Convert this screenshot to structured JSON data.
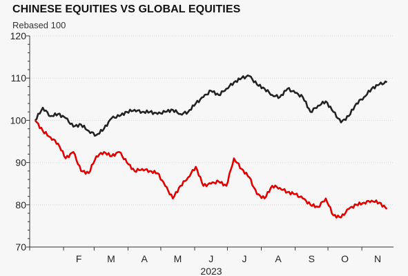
{
  "chart_data": {
    "type": "line",
    "title": "CHINESE EQUITIES VS GLOBAL EQUITIES",
    "subtitle": "Rebased 100",
    "xlabel": "2023",
    "ylabel": "",
    "ylim": [
      70,
      120
    ],
    "yticks": [
      "70",
      "80",
      "90",
      "100",
      "110",
      "120"
    ],
    "xticks": [
      "F",
      "M",
      "A",
      "M",
      "J",
      "J",
      "A",
      "S",
      "O",
      "N"
    ],
    "grid": true,
    "legend": "none",
    "x": [
      "2023-01-06",
      "2023-01-13",
      "2023-01-20",
      "2023-01-27",
      "2023-02-03",
      "2023-02-10",
      "2023-02-17",
      "2023-02-24",
      "2023-03-03",
      "2023-03-10",
      "2023-03-17",
      "2023-03-24",
      "2023-03-31",
      "2023-04-07",
      "2023-04-14",
      "2023-04-21",
      "2023-04-28",
      "2023-05-05",
      "2023-05-12",
      "2023-05-19",
      "2023-05-26",
      "2023-06-02",
      "2023-06-09",
      "2023-06-16",
      "2023-06-23",
      "2023-06-30",
      "2023-07-07",
      "2023-07-14",
      "2023-07-21",
      "2023-07-28",
      "2023-08-04",
      "2023-08-11",
      "2023-08-18",
      "2023-08-25",
      "2023-09-01",
      "2023-09-08",
      "2023-09-15",
      "2023-09-22",
      "2023-09-29",
      "2023-10-06",
      "2023-10-13",
      "2023-10-20",
      "2023-10-27",
      "2023-11-03",
      "2023-11-10",
      "2023-11-17",
      "2023-11-24"
    ],
    "series": [
      {
        "color": "#222222",
        "values": [
          100.0,
          103.0,
          101.0,
          101.5,
          100.5,
          98.5,
          99.0,
          97.5,
          96.5,
          98.0,
          100.5,
          101.0,
          102.0,
          102.5,
          102.0,
          102.0,
          101.5,
          102.0,
          102.5,
          101.5,
          102.0,
          104.0,
          105.5,
          107.0,
          106.0,
          107.5,
          109.0,
          110.0,
          110.5,
          108.5,
          107.5,
          106.0,
          105.5,
          107.5,
          106.5,
          105.5,
          102.0,
          103.5,
          104.5,
          102.0,
          99.5,
          101.0,
          104.0,
          105.5,
          107.5,
          108.5,
          109.0
        ]
      },
      {
        "color": "#e00000",
        "values": [
          100.0,
          97.5,
          96.0,
          94.5,
          91.0,
          92.5,
          88.0,
          87.5,
          91.5,
          92.5,
          91.5,
          92.5,
          90.0,
          88.0,
          88.5,
          88.0,
          87.5,
          84.5,
          81.5,
          84.5,
          86.5,
          89.0,
          84.5,
          85.0,
          85.5,
          84.5,
          91.0,
          88.5,
          86.5,
          82.5,
          81.5,
          84.5,
          84.0,
          83.0,
          82.5,
          81.5,
          80.0,
          79.5,
          81.5,
          77.5,
          77.0,
          79.0,
          80.0,
          80.5,
          81.0,
          80.5,
          79.0
        ]
      }
    ]
  }
}
